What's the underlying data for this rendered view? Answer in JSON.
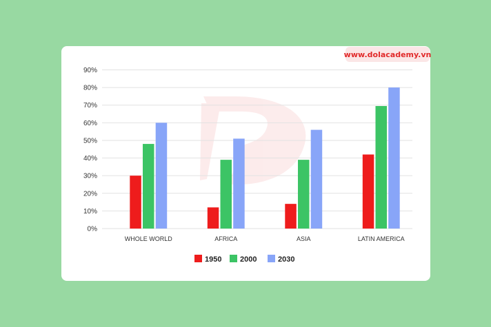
{
  "watermark_text": "www.dolacademy.vn",
  "colors": {
    "background": "#98d9a2",
    "card": "#ffffff",
    "grid": "#e2e2e2"
  },
  "chart_data": {
    "type": "bar",
    "categories": [
      "WHOLE WORLD",
      "AFRICA",
      "ASIA",
      "LATIN AMERICA"
    ],
    "series": [
      {
        "name": "1950",
        "color": "#ee1c1c",
        "values": [
          30,
          12,
          14,
          42
        ]
      },
      {
        "name": "2000",
        "color": "#3cc465",
        "values": [
          48,
          39,
          39,
          69.5
        ]
      },
      {
        "name": "2030",
        "color": "#88a5f8",
        "values": [
          60,
          51,
          56,
          80
        ]
      }
    ],
    "y_ticks": [
      "0%",
      "10%",
      "20%",
      "30%",
      "40%",
      "50%",
      "60%",
      "70%",
      "80%",
      "90%"
    ],
    "ylim": [
      0,
      90
    ],
    "grid": true,
    "legend_position": "bottom-center"
  }
}
